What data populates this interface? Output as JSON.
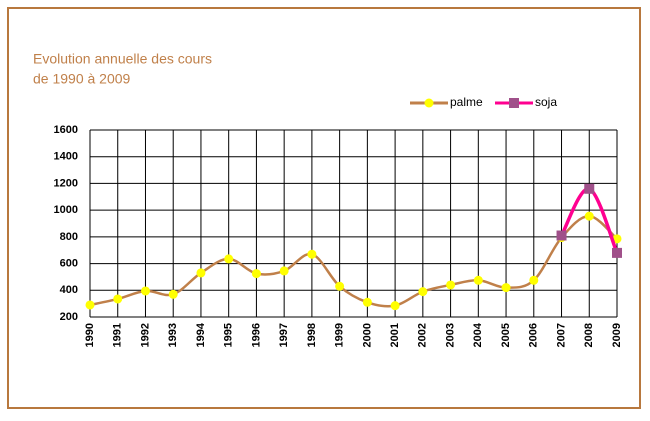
{
  "chart_data": {
    "type": "line",
    "title": [
      "Evolution annuelle des cours",
      "de 1990 à 2009"
    ],
    "categories": [
      "1990",
      "1991",
      "1992",
      "1993",
      "1994",
      "1995",
      "1996",
      "1997",
      "1998",
      "1999",
      "2000",
      "2001",
      "2002",
      "2003",
      "2004",
      "2005",
      "2006",
      "2007",
      "2008",
      "2009"
    ],
    "series": [
      {
        "name": "palme",
        "color": "#c0804a",
        "marker_color": "#ffff00",
        "marker": "circle",
        "values": [
          290,
          335,
          395,
          370,
          530,
          635,
          525,
          545,
          670,
          430,
          310,
          285,
          390,
          440,
          475,
          420,
          475,
          795,
          955,
          785
        ]
      },
      {
        "name": "soja",
        "color": "#ff0090",
        "marker_color": "#a0508a",
        "marker": "square",
        "values": [
          null,
          null,
          null,
          null,
          null,
          null,
          null,
          null,
          null,
          null,
          null,
          null,
          null,
          null,
          null,
          null,
          null,
          810,
          1160,
          680
        ]
      }
    ],
    "ylim": [
      200,
      1600
    ],
    "yticks": [
      200,
      400,
      600,
      800,
      1000,
      1200,
      1400,
      1600
    ],
    "grid": true,
    "legend": "top-right"
  }
}
